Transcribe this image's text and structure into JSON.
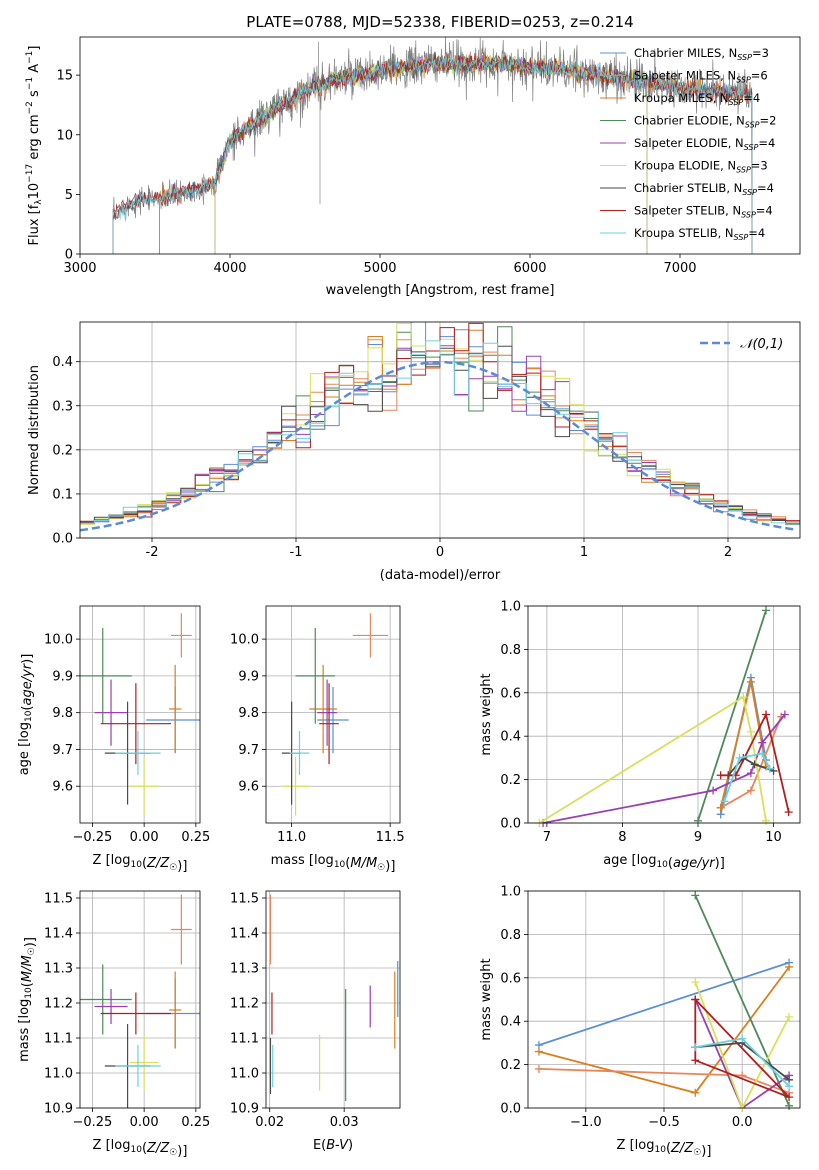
{
  "colors": {
    "grid": "#b0b0b0",
    "spectrum_data": "#808080",
    "normal_curve": "#5b8bd6"
  },
  "chart_data": [
    {
      "id": "spectrum",
      "type": "line",
      "title": "PLATE=0788, MJD=52338, FIBERID=0253, z=0.214",
      "xlabel": "wavelength [Angstrom, rest frame]",
      "ylabel": "Flux [f_λ10^-17 erg cm^-2 s^-1 A^-1]",
      "xlim": [
        3000,
        7800
      ],
      "ylim": [
        0,
        18.2
      ],
      "xticks": [
        3000,
        4000,
        5000,
        6000,
        7000
      ],
      "yticks": [
        0,
        5,
        10,
        15
      ],
      "grid": false,
      "legend_position": "top-right",
      "series": [
        {
          "name": "Chabrier MILES, N_SSP=3",
          "color": "#5b8fd6",
          "range": [
            3530,
            7480
          ]
        },
        {
          "name": "Salpeter MILES, N_SSP=6",
          "color": "#e8855a",
          "range": [
            3530,
            7480
          ]
        },
        {
          "name": "Kroupa MILES, N_SSP=4",
          "color": "#d97f1e",
          "range": [
            3530,
            7480
          ]
        },
        {
          "name": "Chabrier ELODIE, N_SSP=2",
          "color": "#4e8a5a",
          "range": [
            3900,
            6780
          ]
        },
        {
          "name": "Salpeter ELODIE, N_SSP=4",
          "color": "#9b3fb3",
          "range": [
            3900,
            6780
          ]
        },
        {
          "name": "Kroupa ELODIE, N_SSP=3",
          "color": "#d7e05a",
          "range": [
            3900,
            6780
          ]
        },
        {
          "name": "Chabrier STELIB, N_SSP=4",
          "color": "#4a4a4a",
          "range": [
            3220,
            7480
          ]
        },
        {
          "name": "Salpeter STELIB, N_SSP=4",
          "color": "#b01e1e",
          "range": [
            3220,
            7480
          ]
        },
        {
          "name": "Kroupa STELIB, N_SSP=4",
          "color": "#6ecfe0",
          "range": [
            3220,
            7480
          ]
        }
      ],
      "continuum": {
        "x": [
          3200,
          3300,
          3400,
          3500,
          3600,
          3700,
          3800,
          3900,
          4000,
          4100,
          4200,
          4300,
          4400,
          4500,
          4600,
          4700,
          4800,
          4900,
          5000,
          5200,
          5400,
          5600,
          5800,
          6000,
          6200,
          6400,
          6600,
          6800,
          7000,
          7200,
          7400
        ],
        "y": [
          3.0,
          4.0,
          4.6,
          4.7,
          4.9,
          5.2,
          5.5,
          6.0,
          9.5,
          10.5,
          11.2,
          12.2,
          12.8,
          13.6,
          14.2,
          14.7,
          14.8,
          15.0,
          15.3,
          15.7,
          16.0,
          15.9,
          16.0,
          15.7,
          15.5,
          15.0,
          14.8,
          14.4,
          14.0,
          13.7,
          13.4
        ]
      },
      "data_range": [
        3220,
        7480
      ],
      "noise": 0.9
    },
    {
      "id": "residuals",
      "type": "histogram",
      "xlabel": "(data-model)/error",
      "ylabel": "Normed distribution",
      "xlim": [
        -2.5,
        2.5
      ],
      "ylim": [
        0,
        0.49
      ],
      "xticks": [
        -2,
        -1,
        0,
        1,
        2
      ],
      "yticks": [
        0.0,
        0.1,
        0.2,
        0.3,
        0.4
      ],
      "grid": true,
      "legend_position": "top-right",
      "curve": {
        "name": "𝒩(0,1)",
        "mu": 0,
        "sigma": 1
      },
      "bin_width": 0.1,
      "series_colors": [
        "#5b8fd6",
        "#e8855a",
        "#d97f1e",
        "#4e8a5a",
        "#9b3fb3",
        "#d7e05a",
        "#4a4a4a",
        "#b01e1e",
        "#6ecfe0"
      ]
    },
    {
      "id": "age_vs_Z",
      "type": "errorbar",
      "xlabel": "Z [log10(Z/Z☉)]",
      "ylabel": "age [log10(age/yr)]",
      "xlim": [
        -0.31,
        0.27
      ],
      "ylim": [
        9.5,
        10.09
      ],
      "xticks": [
        -0.25,
        0.0,
        0.25
      ],
      "xticklabels": [
        "−0.25",
        "0.00",
        "0.25"
      ],
      "yticks": [
        9.6,
        9.7,
        9.8,
        9.9,
        10.0
      ],
      "grid": true,
      "points": [
        {
          "x": 0.15,
          "xerr": 0.14,
          "y": 9.78,
          "yerr": 0.09,
          "color": "#5b8fd6"
        },
        {
          "x": 0.18,
          "xerr": 0.05,
          "y": 10.01,
          "yerr": 0.06,
          "color": "#e8855a"
        },
        {
          "x": 0.15,
          "xerr": 0.03,
          "y": 9.81,
          "yerr": 0.12,
          "color": "#d97f1e"
        },
        {
          "x": -0.2,
          "xerr": 0.14,
          "y": 9.9,
          "yerr": 0.13,
          "color": "#4e8a5a"
        },
        {
          "x": -0.16,
          "xerr": 0.08,
          "y": 9.8,
          "yerr": 0.09,
          "color": "#9b3fb3"
        },
        {
          "x": 0.0,
          "xerr": 0.07,
          "y": 9.6,
          "yerr": 0.08,
          "color": "#d7e05a"
        },
        {
          "x": -0.08,
          "xerr": 0.11,
          "y": 9.69,
          "yerr": 0.14,
          "color": "#4a4a4a"
        },
        {
          "x": -0.04,
          "xerr": 0.17,
          "y": 9.77,
          "yerr": 0.11,
          "color": "#b01e1e"
        },
        {
          "x": -0.03,
          "xerr": 0.11,
          "y": 9.69,
          "yerr": 0.06,
          "color": "#6ecfe0"
        }
      ]
    },
    {
      "id": "age_vs_mass",
      "type": "errorbar",
      "xlabel": "mass [log10(M/M☉)]",
      "ylabel": "",
      "xlim": [
        10.87,
        11.55
      ],
      "ylim": [
        9.5,
        10.09
      ],
      "xticks": [
        11.0,
        11.5
      ],
      "xticklabels": [
        "11.0",
        "11.5"
      ],
      "yticks": [
        9.6,
        9.7,
        9.8,
        9.9,
        10.0
      ],
      "grid": true,
      "points": [
        {
          "x": 11.21,
          "xerr": 0.08,
          "y": 9.78,
          "yerr": 0.09,
          "color": "#5b8fd6"
        },
        {
          "x": 11.4,
          "xerr": 0.09,
          "y": 10.01,
          "yerr": 0.06,
          "color": "#e8855a"
        },
        {
          "x": 11.16,
          "xerr": 0.07,
          "y": 9.81,
          "yerr": 0.12,
          "color": "#d97f1e"
        },
        {
          "x": 11.12,
          "xerr": 0.1,
          "y": 9.9,
          "yerr": 0.13,
          "color": "#4e8a5a"
        },
        {
          "x": 11.18,
          "xerr": 0.05,
          "y": 9.8,
          "yerr": 0.09,
          "color": "#9b3fb3"
        },
        {
          "x": 11.02,
          "xerr": 0.07,
          "y": 9.6,
          "yerr": 0.08,
          "color": "#d7e05a"
        },
        {
          "x": 11.0,
          "xerr": 0.05,
          "y": 9.69,
          "yerr": 0.14,
          "color": "#4a4a4a"
        },
        {
          "x": 11.19,
          "xerr": 0.05,
          "y": 9.77,
          "yerr": 0.11,
          "color": "#b01e1e"
        },
        {
          "x": 11.04,
          "xerr": 0.05,
          "y": 9.69,
          "yerr": 0.06,
          "color": "#6ecfe0"
        }
      ]
    },
    {
      "id": "massweight_vs_age",
      "type": "line",
      "xlabel": "age [log10(age/yr)]",
      "ylabel": "mass weight",
      "xlim": [
        6.75,
        10.35
      ],
      "ylim": [
        0,
        1.0
      ],
      "xticks": [
        7,
        8,
        9,
        10
      ],
      "yticks": [
        0.0,
        0.2,
        0.4,
        0.6,
        0.8,
        1.0
      ],
      "grid": true,
      "series": [
        {
          "color": "#5b8fd6",
          "x": [
            9.3,
            9.7,
            9.9
          ],
          "y": [
            0.04,
            0.67,
            0.29
          ]
        },
        {
          "color": "#e8855a",
          "x": [
            9.3,
            9.7,
            10.1
          ],
          "y": [
            0.07,
            0.15,
            0.49
          ]
        },
        {
          "color": "#d97f1e",
          "x": [
            9.3,
            9.7,
            9.9
          ],
          "y": [
            0.07,
            0.65,
            0.26
          ]
        },
        {
          "color": "#4e8a5a",
          "x": [
            9.0,
            9.9
          ],
          "y": [
            0.01,
            0.98
          ]
        },
        {
          "color": "#9b3fb3",
          "x": [
            6.95,
            9.2,
            9.7,
            9.85,
            10.15
          ],
          "y": [
            0.0,
            0.15,
            0.23,
            0.37,
            0.5
          ]
        },
        {
          "color": "#d7e05a",
          "x": [
            6.9,
            9.6,
            9.7,
            9.9
          ],
          "y": [
            0.0,
            0.58,
            0.42,
            0.01
          ]
        },
        {
          "color": "#4a4a4a",
          "x": [
            9.4,
            9.6,
            9.75,
            10.0
          ],
          "y": [
            0.22,
            0.3,
            0.27,
            0.24
          ]
        },
        {
          "color": "#b01e1e",
          "x": [
            9.3,
            9.5,
            9.9,
            10.2
          ],
          "y": [
            0.22,
            0.22,
            0.5,
            0.05
          ]
        },
        {
          "color": "#6ecfe0",
          "x": [
            9.35,
            9.55,
            9.85,
            9.95
          ],
          "y": [
            0.1,
            0.3,
            0.32,
            0.25
          ]
        }
      ]
    },
    {
      "id": "mass_vs_Z",
      "type": "errorbar",
      "xlabel": "Z [log10(Z/Z☉)]",
      "ylabel": "mass [log10(M/M☉)]",
      "xlim": [
        -0.31,
        0.27
      ],
      "ylim": [
        10.9,
        11.52
      ],
      "xticks": [
        -0.25,
        0.0,
        0.25
      ],
      "xticklabels": [
        "−0.25",
        "0.00",
        "0.25"
      ],
      "yticks": [
        10.9,
        11.0,
        11.1,
        11.2,
        11.3,
        11.4,
        11.5
      ],
      "grid": true,
      "points": [
        {
          "x": 0.15,
          "xerr": 0.14,
          "y": 11.17,
          "yerr": 0.1,
          "color": "#5b8fd6"
        },
        {
          "x": 0.18,
          "xerr": 0.05,
          "y": 11.41,
          "yerr": 0.1,
          "color": "#e8855a"
        },
        {
          "x": 0.15,
          "xerr": 0.03,
          "y": 11.18,
          "yerr": 0.11,
          "color": "#d97f1e"
        },
        {
          "x": -0.2,
          "xerr": 0.14,
          "y": 11.21,
          "yerr": 0.1,
          "color": "#4e8a5a"
        },
        {
          "x": -0.16,
          "xerr": 0.08,
          "y": 11.19,
          "yerr": 0.05,
          "color": "#9b3fb3"
        },
        {
          "x": 0.0,
          "xerr": 0.07,
          "y": 11.03,
          "yerr": 0.08,
          "color": "#d7e05a"
        },
        {
          "x": -0.08,
          "xerr": 0.11,
          "y": 11.02,
          "yerr": 0.12,
          "color": "#4a4a4a"
        },
        {
          "x": -0.04,
          "xerr": 0.17,
          "y": 11.17,
          "yerr": 0.06,
          "color": "#b01e1e"
        },
        {
          "x": -0.03,
          "xerr": 0.11,
          "y": 11.02,
          "yerr": 0.06,
          "color": "#6ecfe0"
        }
      ]
    },
    {
      "id": "mass_vs_ebv",
      "type": "errorbar",
      "xlabel": "E(B-V)",
      "ylabel": "",
      "xlim": [
        0.0195,
        0.0375
      ],
      "ylim": [
        10.9,
        11.52
      ],
      "xticks": [
        0.02,
        0.03
      ],
      "xticklabels": [
        "0.02",
        "0.03"
      ],
      "yticks": [
        10.9,
        11.0,
        11.1,
        11.2,
        11.3,
        11.4,
        11.5
      ],
      "grid": true,
      "points": [
        {
          "x": 0.0372,
          "xerr": 0,
          "y": 11.24,
          "yerr": 0.08,
          "color": "#5b8fd6"
        },
        {
          "x": 0.0201,
          "xerr": 0,
          "y": 11.41,
          "yerr": 0.1,
          "color": "#e8855a"
        },
        {
          "x": 0.0368,
          "xerr": 0,
          "y": 11.18,
          "yerr": 0.11,
          "color": "#d97f1e"
        },
        {
          "x": 0.0302,
          "xerr": 0,
          "y": 11.08,
          "yerr": 0.16,
          "color": "#4e8a5a"
        },
        {
          "x": 0.0335,
          "xerr": 0,
          "y": 11.19,
          "yerr": 0.06,
          "color": "#9b3fb3"
        },
        {
          "x": 0.0267,
          "xerr": 0,
          "y": 11.03,
          "yerr": 0.08,
          "color": "#d7e05a"
        },
        {
          "x": 0.0201,
          "xerr": 0,
          "y": 11.02,
          "yerr": 0.08,
          "color": "#4a4a4a"
        },
        {
          "x": 0.0203,
          "xerr": 0,
          "y": 11.17,
          "yerr": 0.06,
          "color": "#b01e1e"
        },
        {
          "x": 0.0204,
          "xerr": 0,
          "y": 11.02,
          "yerr": 0.06,
          "color": "#6ecfe0"
        }
      ]
    },
    {
      "id": "massweight_vs_Z",
      "type": "line",
      "xlabel": "Z [log10(Z/Z☉)]",
      "ylabel": "mass weight",
      "xlim": [
        -1.37,
        0.37
      ],
      "ylim": [
        0,
        1.0
      ],
      "xticks": [
        -1.0,
        -0.5,
        0.0
      ],
      "xticklabels": [
        "−1.0",
        "−0.5",
        "0.0"
      ],
      "yticks": [
        0.0,
        0.2,
        0.4,
        0.6,
        0.8,
        1.0
      ],
      "grid": true,
      "series": [
        {
          "color": "#5b8fd6",
          "x": [
            -1.3,
            0.3
          ],
          "y": [
            0.29,
            0.67
          ]
        },
        {
          "color": "#d97f1e",
          "x": [
            -1.3,
            -0.3,
            0.3
          ],
          "y": [
            0.26,
            0.07,
            0.65
          ]
        },
        {
          "color": "#e8855a",
          "x": [
            -1.3,
            0.0,
            0.3
          ],
          "y": [
            0.18,
            0.15,
            0.07
          ]
        },
        {
          "color": "#4e8a5a",
          "x": [
            -0.3,
            0.3
          ],
          "y": [
            0.98,
            0.01
          ]
        },
        {
          "color": "#9b3fb3",
          "x": [
            -0.3,
            0.0,
            0.3
          ],
          "y": [
            0.5,
            0.0,
            0.15
          ]
        },
        {
          "color": "#d7e05a",
          "x": [
            -0.3,
            0.0,
            0.3
          ],
          "y": [
            0.58,
            0.0,
            0.42
          ]
        },
        {
          "color": "#b01e1e",
          "x": [
            -0.3,
            -0.3,
            0.3,
            -0.3
          ],
          "y": [
            0.5,
            0.22,
            0.05,
            0.5
          ]
        },
        {
          "color": "#4a4a4a",
          "x": [
            -0.3,
            0.0,
            0.3
          ],
          "y": [
            0.28,
            0.3,
            0.13
          ]
        },
        {
          "color": "#6ecfe0",
          "x": [
            -0.3,
            0.0,
            0.3
          ],
          "y": [
            0.28,
            0.32,
            0.1
          ]
        }
      ]
    }
  ]
}
